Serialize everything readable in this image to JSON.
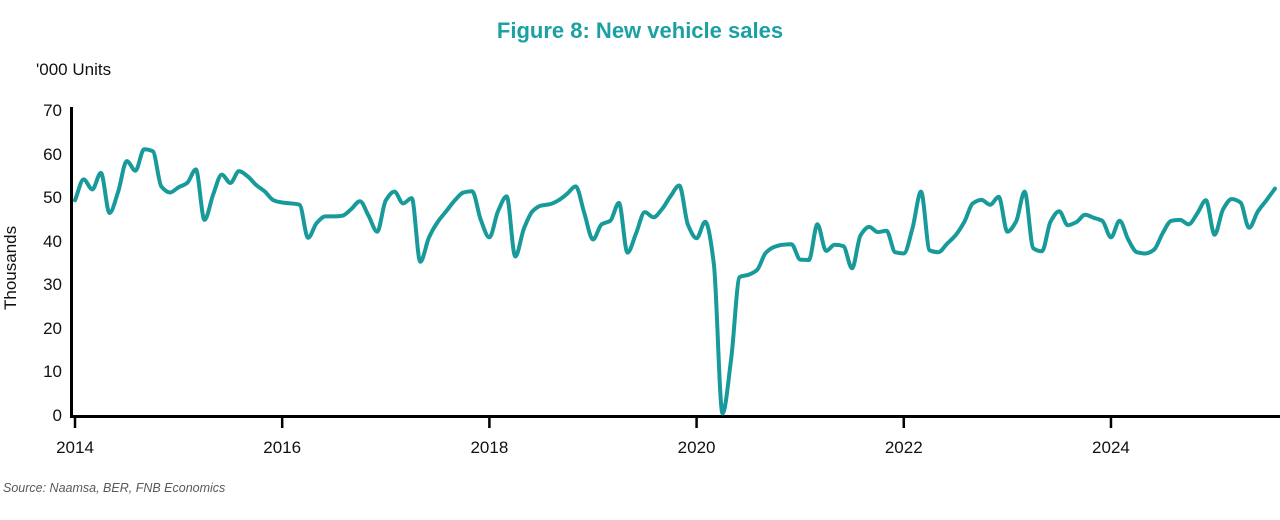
{
  "title": "Figure 8: New vehicle sales",
  "units_label": "'000 Units",
  "y_axis_title": "Thousands",
  "source": "Source: Naamsa, BER, FNB Economics",
  "colors": {
    "title_teal": "#1CA0A4",
    "line_teal": "#189A9B",
    "axis_black": "#000000",
    "source_gray": "#595959"
  },
  "chart_data": {
    "type": "line",
    "title": "Figure 8: New vehicle sales",
    "ylabel": "Thousands",
    "units": "'000 Units",
    "grid": false,
    "legend": "none",
    "ylim": [
      0,
      70
    ],
    "y_ticks": [
      0,
      10,
      20,
      30,
      40,
      50,
      60,
      70
    ],
    "x_ticks": [
      2014,
      2016,
      2018,
      2020,
      2022,
      2024
    ],
    "x_start_year": 2014,
    "frequency": "monthly",
    "series": [
      {
        "name": "New vehicle sales ('000 units)",
        "values": [
          49.5,
          54.3,
          52.0,
          55.8,
          46.6,
          51.5,
          58.5,
          56.3,
          61.2,
          60.8,
          52.7,
          51.3,
          52.5,
          53.5,
          56.6,
          45.0,
          50.8,
          55.4,
          53.5,
          56.2,
          55.0,
          53.0,
          51.5,
          49.5,
          49.0,
          48.8,
          48.5,
          40.9,
          44.3,
          45.8,
          45.8,
          46.0,
          47.5,
          49.3,
          46.0,
          42.3,
          49.5,
          51.5,
          48.8,
          50.0,
          35.4,
          41.0,
          44.5,
          47.0,
          49.5,
          51.3,
          51.6,
          45.0,
          41.0,
          47.0,
          50.4,
          36.6,
          43.0,
          47.0,
          48.3,
          48.6,
          49.5,
          51.0,
          52.7,
          46.5,
          40.5,
          44.0,
          44.8,
          48.9,
          37.5,
          42.0,
          46.8,
          45.6,
          47.5,
          50.5,
          52.9,
          43.9,
          40.8,
          44.6,
          35.0,
          0.6,
          13.0,
          31.9,
          32.4,
          33.5,
          37.4,
          38.8,
          39.3,
          39.4,
          35.9,
          35.8,
          44.0,
          37.9,
          39.3,
          39.0,
          33.9,
          41.5,
          43.4,
          42.2,
          42.5,
          37.6,
          37.3,
          43.0,
          51.5,
          38.0,
          37.6,
          39.5,
          41.5,
          44.5,
          48.8,
          49.6,
          48.5,
          50.3,
          42.3,
          44.6,
          51.5,
          38.5,
          37.8,
          44.6,
          47.0,
          43.8,
          44.5,
          46.2,
          45.5,
          44.8,
          41.0,
          44.8,
          40.5,
          37.6,
          37.3,
          38.2,
          42.0,
          44.8,
          45.0,
          44.0,
          46.5,
          49.5,
          41.6,
          47.5,
          49.8,
          49.0,
          43.2,
          46.9,
          49.5,
          52.2
        ]
      }
    ]
  }
}
